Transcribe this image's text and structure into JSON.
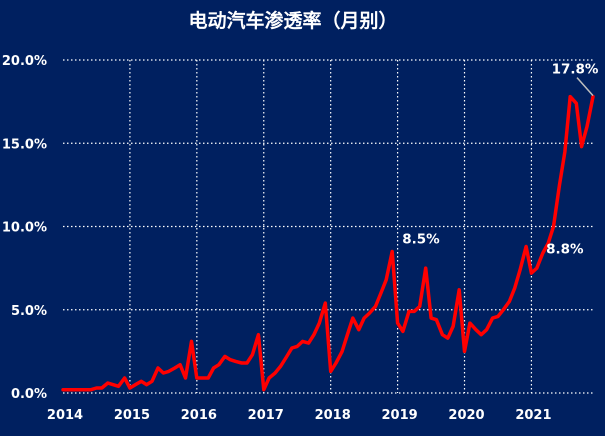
{
  "chart_data": {
    "type": "line",
    "title": "电动汽车渗透率（月别）",
    "xlabel": "",
    "ylabel": "",
    "x_ticks": [
      "2014",
      "2015",
      "2016",
      "2017",
      "2018",
      "2019",
      "2020",
      "2021"
    ],
    "y_ticks": [
      "0.0%",
      "5.0%",
      "10.0%",
      "15.0%",
      "20.0%"
    ],
    "xlim": [
      2014,
      2021.92
    ],
    "ylim": [
      0,
      20
    ],
    "grid": true,
    "series": [
      {
        "color": "#ff0000",
        "x": [
          2014.0,
          2014.08,
          2014.17,
          2014.25,
          2014.33,
          2014.42,
          2014.5,
          2014.58,
          2014.67,
          2014.75,
          2014.83,
          2014.92,
          2015.0,
          2015.08,
          2015.17,
          2015.25,
          2015.33,
          2015.42,
          2015.5,
          2015.58,
          2015.67,
          2015.75,
          2015.83,
          2015.92,
          2016.0,
          2016.08,
          2016.17,
          2016.25,
          2016.33,
          2016.42,
          2016.5,
          2016.58,
          2016.67,
          2016.75,
          2016.83,
          2016.92,
          2017.0,
          2017.08,
          2017.17,
          2017.25,
          2017.33,
          2017.42,
          2017.5,
          2017.58,
          2017.67,
          2017.75,
          2017.83,
          2017.92,
          2018.0,
          2018.08,
          2018.17,
          2018.25,
          2018.33,
          2018.42,
          2018.5,
          2018.58,
          2018.67,
          2018.75,
          2018.83,
          2018.92,
          2019.0,
          2019.08,
          2019.17,
          2019.25,
          2019.33,
          2019.42,
          2019.5,
          2019.58,
          2019.67,
          2019.75,
          2019.83,
          2019.92,
          2020.0,
          2020.08,
          2020.17,
          2020.25,
          2020.33,
          2020.42,
          2020.5,
          2020.58,
          2020.67,
          2020.75,
          2020.83,
          2020.92,
          2021.0,
          2021.08,
          2021.17,
          2021.25,
          2021.33,
          2021.42,
          2021.5,
          2021.58,
          2021.67,
          2021.75,
          2021.83,
          2021.92
        ],
        "y": [
          0.2,
          0.2,
          0.2,
          0.2,
          0.2,
          0.2,
          0.3,
          0.3,
          0.6,
          0.5,
          0.4,
          0.9,
          0.3,
          0.5,
          0.7,
          0.5,
          0.7,
          1.5,
          1.2,
          1.3,
          1.5,
          1.7,
          0.9,
          3.1,
          0.9,
          0.9,
          0.9,
          1.5,
          1.7,
          2.2,
          2.0,
          1.9,
          1.8,
          1.8,
          2.3,
          3.5,
          0.2,
          0.9,
          1.2,
          1.6,
          2.1,
          2.7,
          2.8,
          3.1,
          3.0,
          3.5,
          4.2,
          5.4,
          1.3,
          1.8,
          2.5,
          3.5,
          4.5,
          3.8,
          4.5,
          4.8,
          5.2,
          6.0,
          6.8,
          8.5,
          4.2,
          3.7,
          4.9,
          4.9,
          5.2,
          7.5,
          4.5,
          4.4,
          3.5,
          3.3,
          4.0,
          6.2,
          2.5,
          4.2,
          3.8,
          3.5,
          3.8,
          4.5,
          4.6,
          5.0,
          5.5,
          6.3,
          7.4,
          8.8,
          7.2,
          7.5,
          8.4,
          9.0,
          10.0,
          12.5,
          14.5,
          17.8,
          17.4,
          14.8,
          16.0,
          17.8
        ]
      }
    ],
    "annotations": [
      {
        "text": "8.5%",
        "x": 2018.92,
        "y": 8.5
      },
      {
        "text": "8.8%",
        "x": 2020.92,
        "y": 8.8
      },
      {
        "text": "17.8%",
        "x": 2021.92,
        "y": 17.8
      }
    ]
  }
}
